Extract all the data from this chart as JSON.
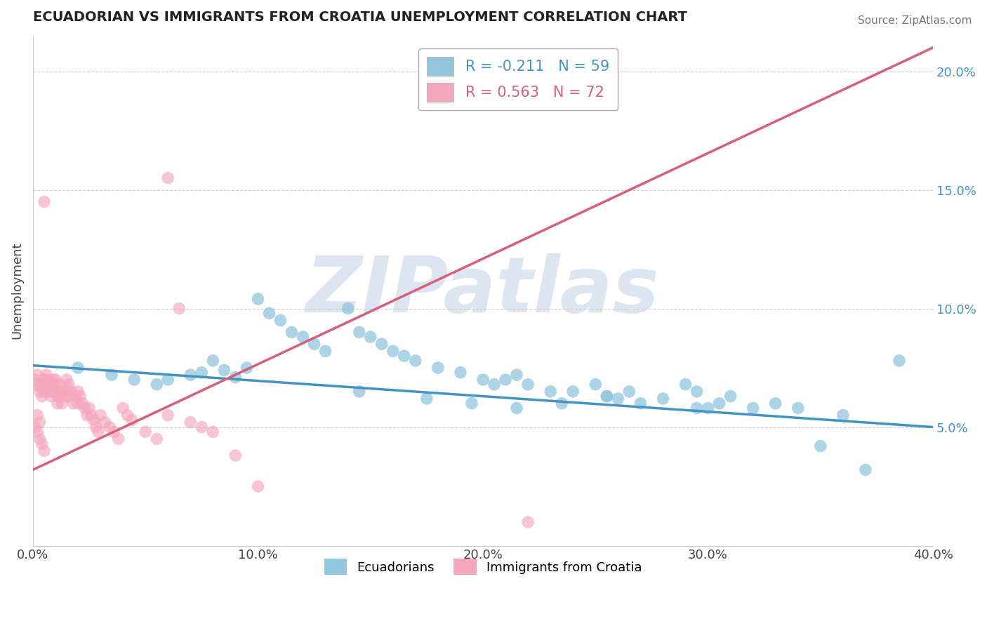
{
  "title": "ECUADORIAN VS IMMIGRANTS FROM CROATIA UNEMPLOYMENT CORRELATION CHART",
  "source": "Source: ZipAtlas.com",
  "ylabel": "Unemployment",
  "xlim": [
    0.0,
    0.4
  ],
  "ylim": [
    0.0,
    0.215
  ],
  "xticks": [
    0.0,
    0.1,
    0.2,
    0.3,
    0.4
  ],
  "xtick_labels": [
    "0.0%",
    "10.0%",
    "20.0%",
    "30.0%",
    "40.0%"
  ],
  "yticks_right": [
    0.05,
    0.1,
    0.15,
    0.2
  ],
  "ytick_labels_right": [
    "5.0%",
    "10.0%",
    "15.0%",
    "20.0%"
  ],
  "blue_R": "-0.211",
  "blue_N": "59",
  "pink_R": "0.563",
  "pink_N": "72",
  "blue_color": "#92c5de",
  "pink_color": "#f4a6be",
  "blue_line_color": "#4393c3",
  "pink_line_color": "#d6607a",
  "watermark": "ZIPatlas",
  "watermark_color": "#dde6f0",
  "blue_trend_x": [
    0.0,
    0.4
  ],
  "blue_trend_y": [
    0.076,
    0.05
  ],
  "pink_trend_x": [
    0.0,
    0.4
  ],
  "pink_trend_y": [
    0.032,
    0.21
  ],
  "blue_x": [
    0.02,
    0.035,
    0.045,
    0.055,
    0.06,
    0.07,
    0.075,
    0.08,
    0.085,
    0.09,
    0.095,
    0.1,
    0.105,
    0.11,
    0.115,
    0.12,
    0.125,
    0.13,
    0.14,
    0.145,
    0.15,
    0.155,
    0.16,
    0.165,
    0.17,
    0.18,
    0.19,
    0.2,
    0.205,
    0.21,
    0.215,
    0.22,
    0.23,
    0.24,
    0.25,
    0.255,
    0.26,
    0.27,
    0.28,
    0.29,
    0.295,
    0.3,
    0.305,
    0.31,
    0.32,
    0.33,
    0.34,
    0.35,
    0.36,
    0.37,
    0.145,
    0.175,
    0.195,
    0.215,
    0.235,
    0.255,
    0.265,
    0.295,
    0.385
  ],
  "blue_y": [
    0.075,
    0.072,
    0.07,
    0.068,
    0.07,
    0.072,
    0.073,
    0.078,
    0.074,
    0.071,
    0.075,
    0.104,
    0.098,
    0.095,
    0.09,
    0.088,
    0.085,
    0.082,
    0.1,
    0.09,
    0.088,
    0.085,
    0.082,
    0.08,
    0.078,
    0.075,
    0.073,
    0.07,
    0.068,
    0.07,
    0.072,
    0.068,
    0.065,
    0.065,
    0.068,
    0.063,
    0.062,
    0.06,
    0.062,
    0.068,
    0.065,
    0.058,
    0.06,
    0.063,
    0.058,
    0.06,
    0.058,
    0.042,
    0.055,
    0.032,
    0.065,
    0.062,
    0.06,
    0.058,
    0.06,
    0.063,
    0.065,
    0.058,
    0.078
  ],
  "pink_x": [
    0.001,
    0.002,
    0.002,
    0.003,
    0.003,
    0.004,
    0.004,
    0.005,
    0.005,
    0.006,
    0.006,
    0.007,
    0.007,
    0.008,
    0.008,
    0.009,
    0.009,
    0.01,
    0.01,
    0.01,
    0.011,
    0.011,
    0.012,
    0.012,
    0.013,
    0.013,
    0.014,
    0.015,
    0.015,
    0.016,
    0.016,
    0.017,
    0.018,
    0.019,
    0.02,
    0.02,
    0.021,
    0.022,
    0.023,
    0.024,
    0.025,
    0.026,
    0.027,
    0.028,
    0.029,
    0.03,
    0.032,
    0.034,
    0.036,
    0.038,
    0.04,
    0.042,
    0.044,
    0.05,
    0.055,
    0.06,
    0.065,
    0.07,
    0.075,
    0.08,
    0.09,
    0.1,
    0.001,
    0.002,
    0.003,
    0.004,
    0.002,
    0.003,
    0.06,
    0.005,
    0.22,
    0.005
  ],
  "pink_y": [
    0.07,
    0.068,
    0.072,
    0.067,
    0.065,
    0.068,
    0.063,
    0.07,
    0.065,
    0.072,
    0.068,
    0.07,
    0.065,
    0.068,
    0.063,
    0.07,
    0.065,
    0.07,
    0.068,
    0.065,
    0.063,
    0.06,
    0.068,
    0.063,
    0.065,
    0.06,
    0.063,
    0.07,
    0.065,
    0.068,
    0.063,
    0.065,
    0.06,
    0.063,
    0.065,
    0.06,
    0.063,
    0.06,
    0.058,
    0.055,
    0.058,
    0.055,
    0.053,
    0.05,
    0.048,
    0.055,
    0.052,
    0.05,
    0.048,
    0.045,
    0.058,
    0.055,
    0.053,
    0.048,
    0.045,
    0.055,
    0.1,
    0.052,
    0.05,
    0.048,
    0.038,
    0.025,
    0.05,
    0.048,
    0.045,
    0.043,
    0.055,
    0.052,
    0.155,
    0.04,
    0.01,
    0.145
  ]
}
